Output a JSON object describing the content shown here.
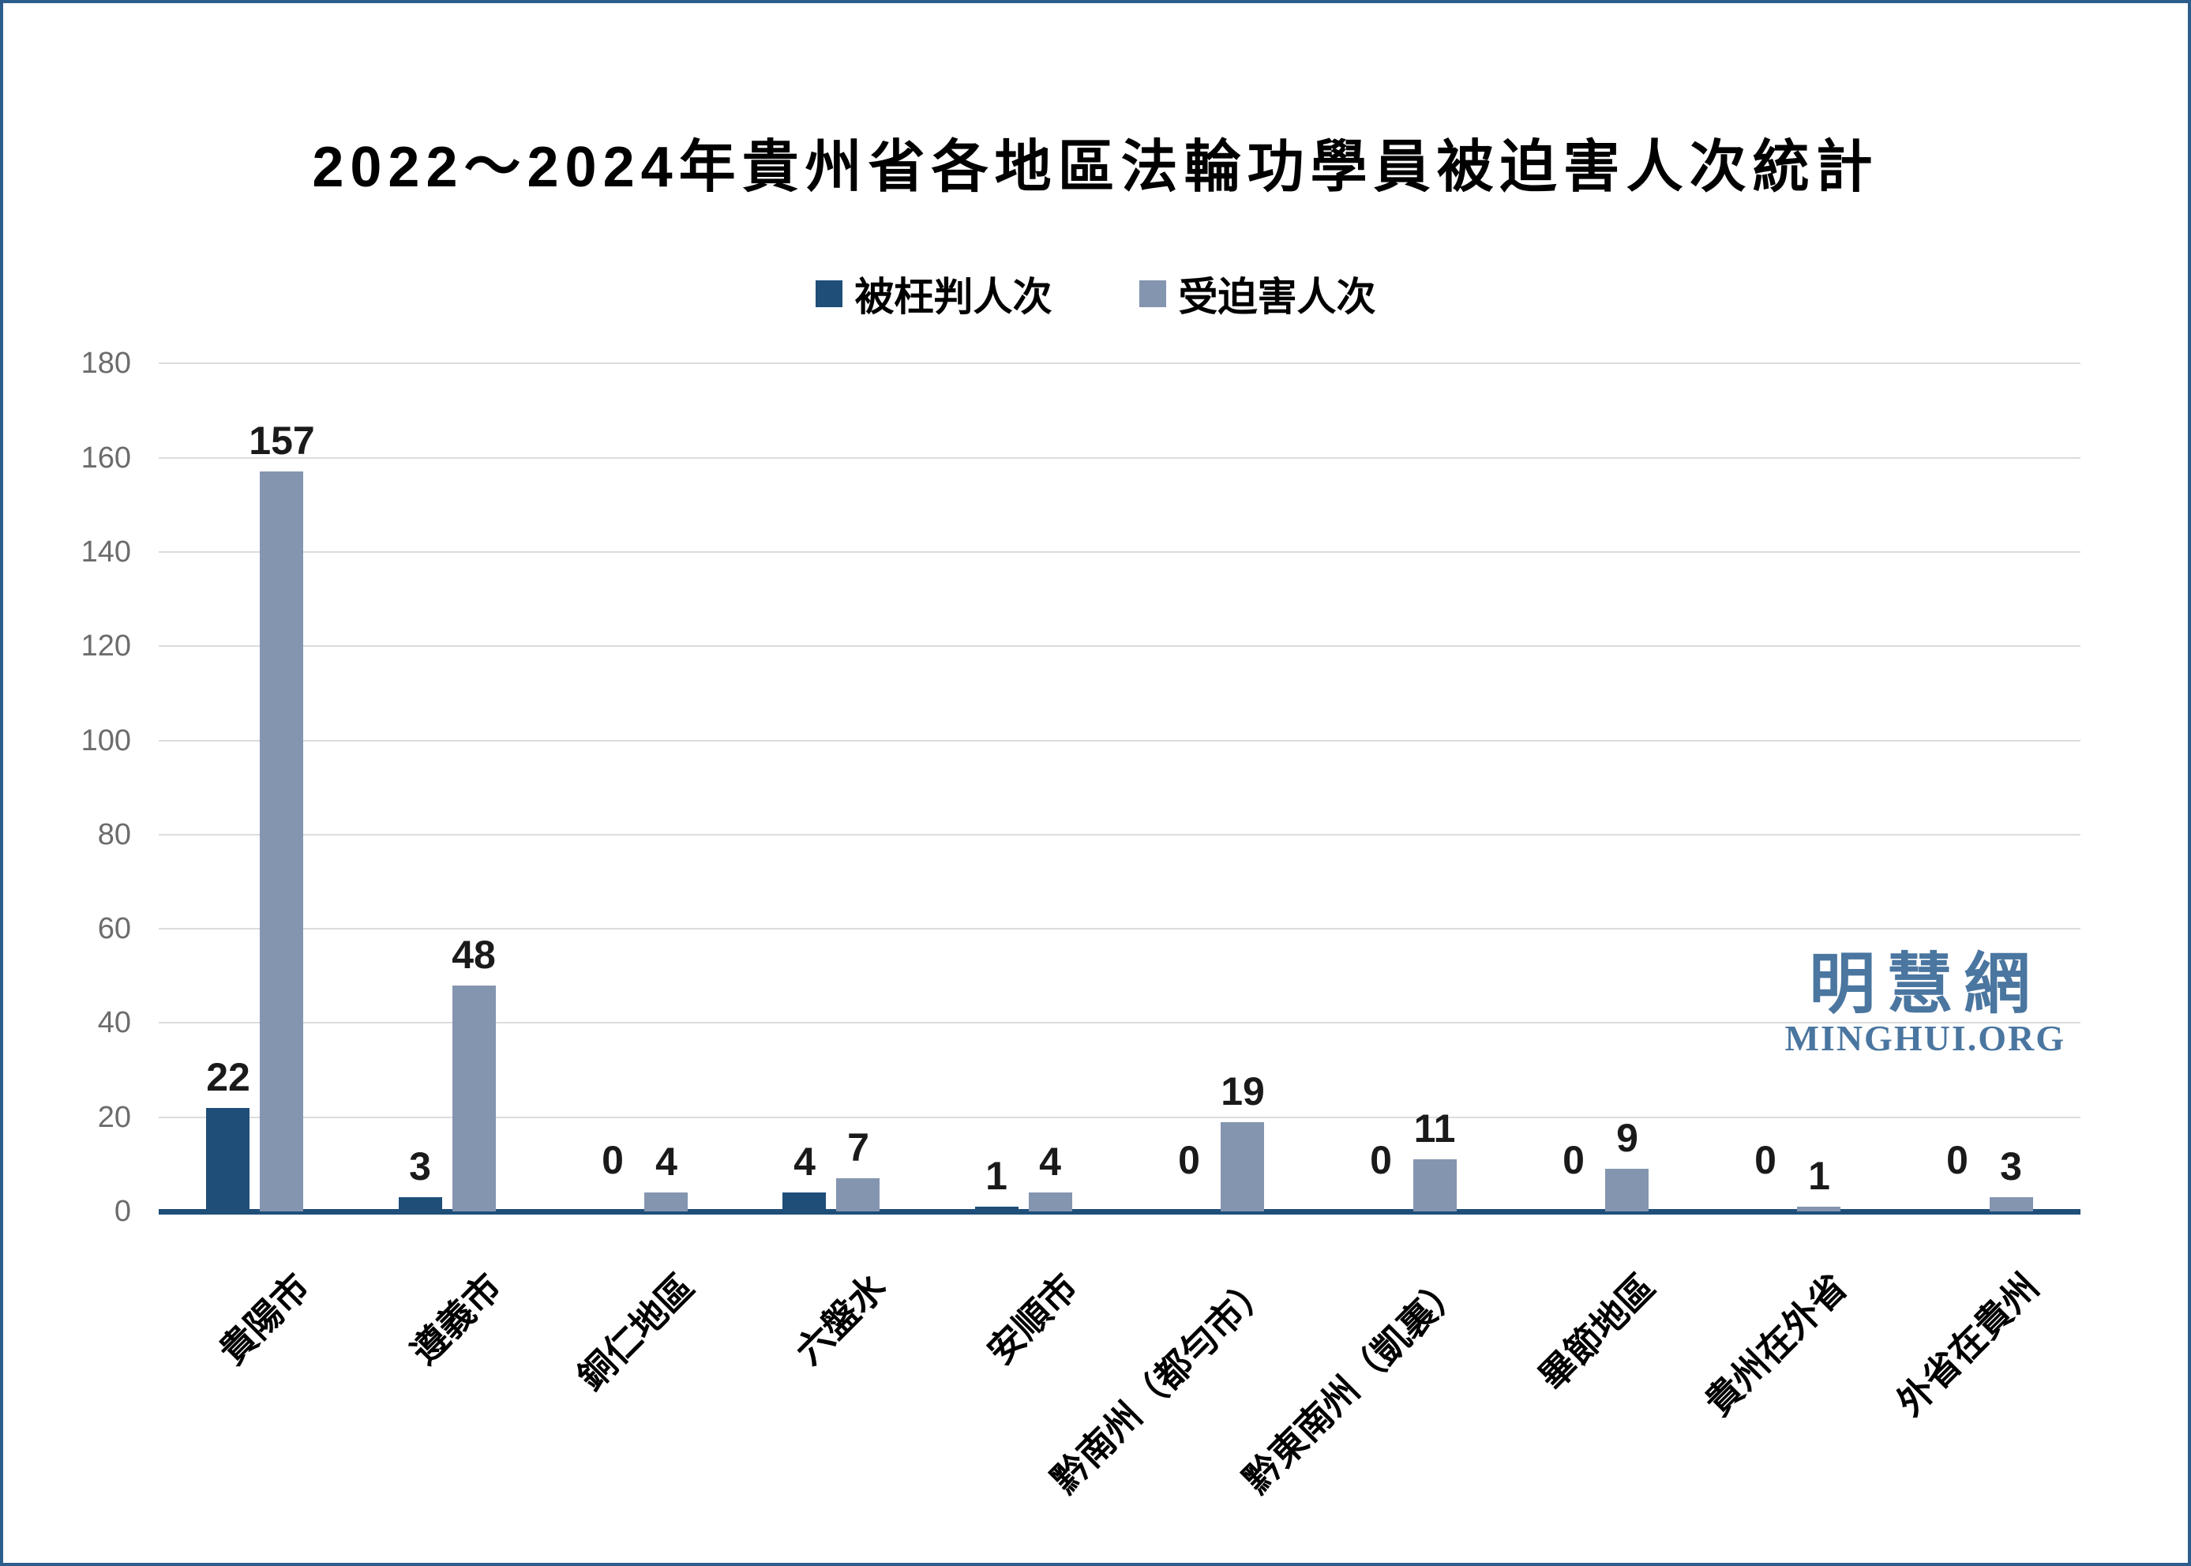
{
  "title": "2022～2024年貴州省各地區法輪功學員被迫害人次統計",
  "legend": {
    "items": [
      {
        "label": "被枉判人次",
        "color": "#1F4E79"
      },
      {
        "label": "受迫害人次",
        "color": "#8495B0"
      }
    ]
  },
  "watermark": {
    "cjk": "明慧網",
    "latin": "MINGHUI.ORG"
  },
  "colors": {
    "border": "#2D5E8B",
    "axis": "#1F4E79",
    "gridline": "#DCDCDC",
    "tick_text": "#6C6C6C",
    "value_text": "#1A1A1A",
    "watermark": "#4A76A0",
    "series1": "#1F4E79",
    "series2": "#8495B0"
  },
  "chart_data": {
    "type": "bar",
    "title": "2022～2024年貴州省各地區法輪功學員被迫害人次統計",
    "categories": [
      "貴陽市",
      "遵義市",
      "銅仁地區",
      "六盤水",
      "安順市",
      "黔南州（都勻市）",
      "黔東南州（凱裏）",
      "畢節地區",
      "貴州在外省",
      "外省在貴州"
    ],
    "series": [
      {
        "name": "被枉判人次",
        "color": "#1F4E79",
        "values": [
          22,
          3,
          0,
          4,
          1,
          0,
          0,
          0,
          0,
          0
        ]
      },
      {
        "name": "受迫害人次",
        "color": "#8495B0",
        "values": [
          157,
          48,
          4,
          7,
          4,
          19,
          11,
          9,
          1,
          3
        ]
      }
    ],
    "xlabel": "",
    "ylabel": "",
    "ylim": [
      0,
      180
    ],
    "yticks": [
      0,
      20,
      40,
      60,
      80,
      100,
      120,
      140,
      160,
      180
    ],
    "grid": true,
    "legend_position": "top",
    "bar_value_labels": true,
    "category_label_rotation_deg": -45
  }
}
